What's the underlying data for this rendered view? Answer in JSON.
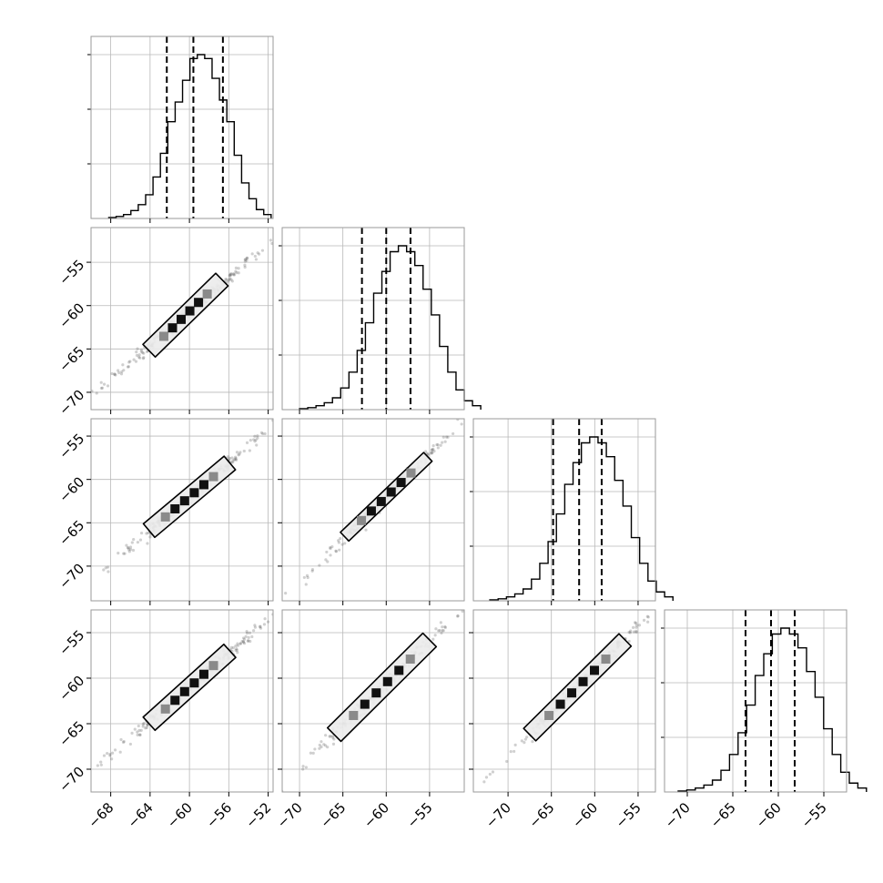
{
  "chart_data": {
    "type": "corner",
    "n_params": 4,
    "grid": true,
    "parameters": [
      {
        "index": 0,
        "median": -59.6,
        "q16": -62.3,
        "q84": -56.6,
        "range": [
          -70,
          -51.5
        ],
        "ticks": [
          -68,
          -64,
          -60,
          -56,
          -52
        ]
      },
      {
        "index": 1,
        "median": -60.0,
        "q16": -62.8,
        "q84": -57.2,
        "range": [
          -72,
          -51
        ],
        "ticks": [
          -70,
          -65,
          -60,
          -55
        ]
      },
      {
        "index": 2,
        "median": -61.8,
        "q16": -64.8,
        "q84": -59.2,
        "range": [
          -74,
          -53
        ],
        "ticks": [
          -70,
          -65,
          -60,
          -55
        ]
      },
      {
        "index": 3,
        "median": -60.8,
        "q16": -63.6,
        "q84": -58.2,
        "range": [
          -72.5,
          -52.5
        ],
        "ticks": [
          -70,
          -65,
          -60,
          -55
        ]
      }
    ],
    "y_ticks": {
      "1": [
        -55,
        -60,
        -65,
        -70
      ],
      "2": [
        -55,
        -60,
        -65,
        -70
      ],
      "3": [
        -55,
        -60,
        -65,
        -70
      ]
    },
    "histograms": [
      {
        "param": 0,
        "bin_start": -68.2,
        "bin_width": 0.75,
        "counts": [
          1,
          2,
          4,
          8,
          14,
          24,
          42,
          66,
          98,
          118,
          140,
          162,
          166,
          162,
          142,
          120,
          98,
          64,
          36,
          20,
          9,
          4
        ]
      },
      {
        "param": 1,
        "bin_start": -70.0,
        "bin_width": 0.95,
        "counts": [
          1,
          2,
          4,
          7,
          12,
          22,
          38,
          60,
          88,
          118,
          140,
          160,
          166,
          160,
          146,
          122,
          96,
          64,
          38,
          20,
          9,
          4
        ]
      },
      {
        "param": 2,
        "bin_start": -72.1,
        "bin_width": 0.96,
        "counts": [
          1,
          2,
          4,
          7,
          12,
          22,
          38,
          60,
          88,
          118,
          140,
          160,
          166,
          160,
          146,
          122,
          96,
          64,
          38,
          20,
          9,
          4
        ]
      },
      {
        "param": 3,
        "bin_start": -71.0,
        "bin_width": 0.94,
        "counts": [
          1,
          2,
          4,
          7,
          12,
          22,
          38,
          60,
          88,
          118,
          140,
          160,
          166,
          160,
          146,
          122,
          96,
          64,
          38,
          20,
          9,
          4
        ]
      }
    ],
    "scatter_2d": [
      {
        "x_param": 0,
        "y_param": 1,
        "center": [
          -60.4,
          -61.1
        ],
        "contour_half_length": [
          3.7,
          4.1
        ],
        "contour_half_width": 0.9,
        "rho": 0.98
      },
      {
        "x_param": 0,
        "y_param": 2,
        "center": [
          -60.0,
          -62.0
        ],
        "contour_half_length": [
          4.1,
          3.9
        ],
        "contour_half_width": 0.9,
        "rho": 0.98
      },
      {
        "x_param": 1,
        "y_param": 2,
        "center": [
          -60.0,
          -62.0
        ],
        "contour_half_length": [
          4.8,
          4.6
        ],
        "contour_half_width": 0.7,
        "rho": 0.99
      },
      {
        "x_param": 0,
        "y_param": 3,
        "center": [
          -60.0,
          -61.0
        ],
        "contour_half_length": [
          4.1,
          4.0
        ],
        "contour_half_width": 0.9,
        "rho": 0.98
      },
      {
        "x_param": 1,
        "y_param": 3,
        "center": [
          -60.5,
          -61.0
        ],
        "contour_half_length": [
          5.5,
          5.2
        ],
        "contour_half_width": 1.1,
        "rho": 0.97
      },
      {
        "x_param": 2,
        "y_param": 3,
        "center": [
          -62.0,
          -61.0
        ],
        "contour_half_length": [
          5.5,
          5.2
        ],
        "contour_half_width": 1.0,
        "rho": 0.98
      }
    ],
    "colors": {
      "line": "#000000",
      "frame": "#9a9a9a",
      "grid": "#b8b8b8",
      "fill": "#ebebeb",
      "points": "#555555"
    }
  }
}
